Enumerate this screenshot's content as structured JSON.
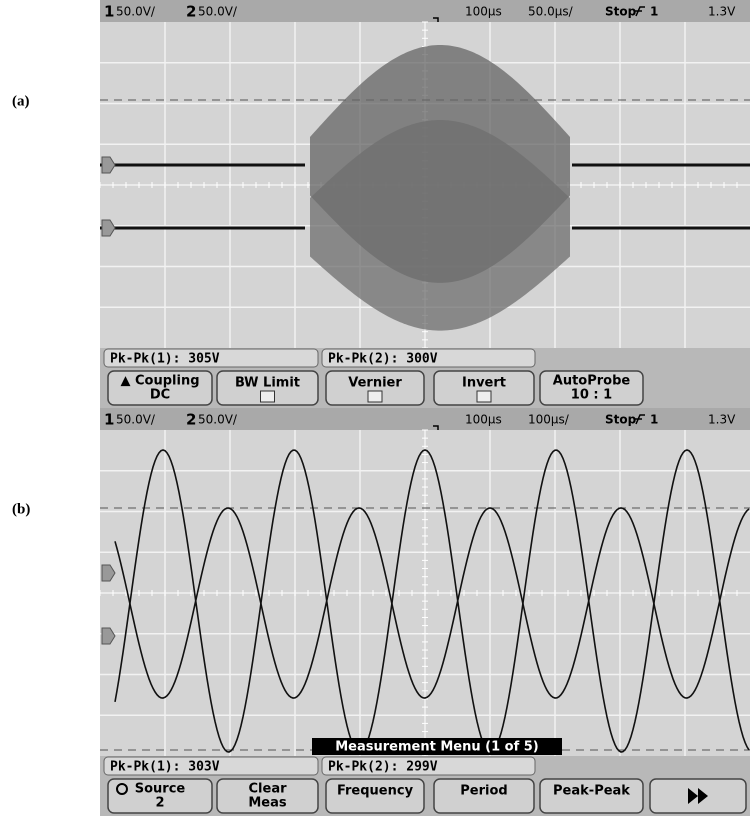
{
  "panels": [
    {
      "label": "(a)",
      "status": [
        "1",
        "50.0V/",
        "2",
        "50.0V/",
        "100µs",
        "50.0µs/",
        "Stop",
        "1",
        "1.3V"
      ],
      "measurements": [
        "Pk-Pk(1): 305V",
        "Pk-Pk(2): 300V"
      ],
      "softkeys": [
        [
          "▲ Coupling",
          "DC"
        ],
        [
          "BW Limit"
        ],
        [
          "Vernier"
        ],
        [
          "Invert"
        ],
        [
          "AutoProbe",
          "10 : 1"
        ]
      ]
    },
    {
      "label": "(b)",
      "status": [
        "1",
        "50.0V/",
        "2",
        "50.0V/",
        "100µs",
        "100µs/",
        "Stop",
        "1",
        "1.3V"
      ],
      "measurements": [
        "Pk-Pk(1): 303V",
        "Pk-Pk(2): 299V"
      ],
      "menu_title": "Measurement Menu (1 of 5)",
      "softkeys": [
        [
          "Source",
          "2"
        ],
        [
          "Clear",
          "Meas"
        ],
        [
          "Frequency"
        ],
        [
          "Period"
        ],
        [
          "Peak-Peak"
        ]
      ]
    }
  ]
}
